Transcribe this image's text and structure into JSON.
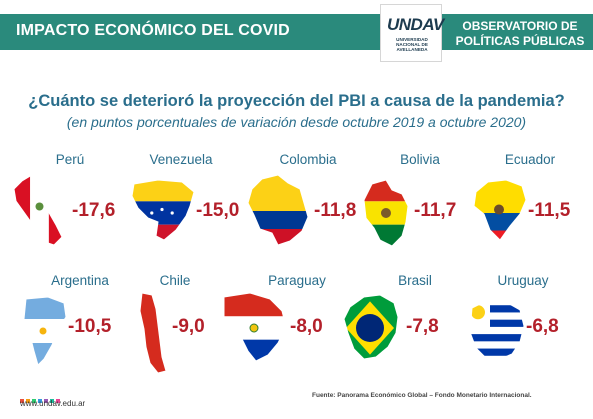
{
  "header": {
    "title": "IMPACTO ECONÓMICO DEL COVID",
    "logo_word": "UNDAV",
    "logo_sub": "UNIVERSIDAD NACIONAL DE AVELLANEDA",
    "observatory_line1": "OBSERVATORIO DE",
    "observatory_line2": "POLÍTICAS PÚBLICAS"
  },
  "chart_data": {
    "type": "table",
    "title": "¿Cuánto se deterioró la proyección del PBI a causa de la pandemia?",
    "subtitle": "(en puntos porcentuales de variación desde octubre 2019 a octubre 2020)",
    "categories": [
      "Perú",
      "Venezuela",
      "Colombia",
      "Bolivia",
      "Ecuador",
      "Argentina",
      "Chile",
      "Paraguay",
      "Brasil",
      "Uruguay"
    ],
    "values": [
      -17.6,
      -15.0,
      -11.8,
      -11.7,
      -11.5,
      -10.5,
      -9.0,
      -8.0,
      -7.8,
      -6.8
    ],
    "value_labels": [
      "-17,6",
      "-15,0",
      "-11,8",
      "-11,7",
      "-11,5",
      "-10,5",
      "-9,0",
      "-8,0",
      "-7,8",
      "-6,8"
    ]
  },
  "footer": {
    "url": "www.undav.edu.ar",
    "source": "Fuente: Panorama Económico Global – Fondo Monetario Internacional."
  },
  "colors": {
    "band": "#2a8a7c",
    "text_blue": "#2a6e8c",
    "value_red": "#b3202a"
  }
}
